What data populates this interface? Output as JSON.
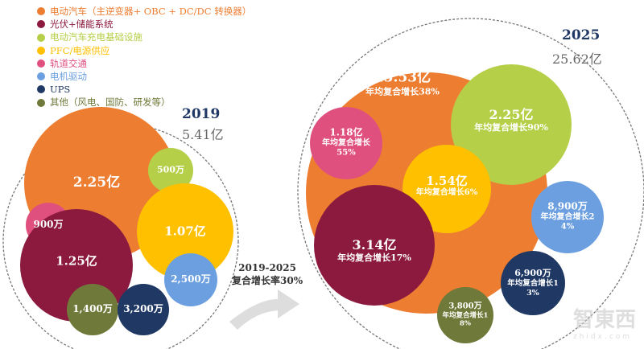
{
  "legend": [
    {
      "label": "电动汽车（主逆变器+ OBC + DC/DC 转换器）",
      "color": "#ed7d31"
    },
    {
      "label": "光伏+储能系统",
      "color": "#8b1a3e"
    },
    {
      "label": "电动汽车充电基础设施",
      "color": "#b5cf48"
    },
    {
      "label": "PFC/电源供应",
      "color": "#ffc000"
    },
    {
      "label": "轨道交通",
      "color": "#e0507f"
    },
    {
      "label": "电机驱动",
      "color": "#6c9fe0"
    },
    {
      "label": "UPS",
      "color": "#1f3864"
    },
    {
      "label": "其他（风电、国防、研发等）",
      "color": "#6f7a3a"
    }
  ],
  "chart_data": {
    "type": "bubble",
    "groups": [
      {
        "year": "2019",
        "total": "5.41亿",
        "bubbles": [
          {
            "category": "电动汽车（主逆变器+ OBC + DC/DC 转换器）",
            "value": "2.25亿"
          },
          {
            "category": "电动汽车充电基础设施",
            "value": "500万"
          },
          {
            "category": "PFC/电源供应",
            "value": "1.07亿"
          },
          {
            "category": "轨道交通",
            "value": "900万"
          },
          {
            "category": "光伏+储能系统",
            "value": "1.25亿"
          },
          {
            "category": "电机驱动",
            "value": "2,500万"
          },
          {
            "category": "其他（风电、国防、研发等）",
            "value": "1,400万"
          },
          {
            "category": "UPS",
            "value": "3,200万"
          }
        ]
      },
      {
        "year": "2025",
        "total": "25.62亿",
        "bubbles": [
          {
            "category": "电动汽车（主逆变器+ OBC + DC/DC 转换器）",
            "value": "15.53亿",
            "growth": "年均复合增长38%"
          },
          {
            "category": "电动汽车充电基础设施",
            "value": "2.25亿",
            "growth": "年均复合增长90%"
          },
          {
            "category": "轨道交通",
            "value": "1.18亿",
            "growth": "年均复合增长55%"
          },
          {
            "category": "PFC/电源供应",
            "value": "1.54亿",
            "growth": "年均复合增长6%"
          },
          {
            "category": "光伏+储能系统",
            "value": "3.14亿",
            "growth": "年均复合增长17%"
          },
          {
            "category": "电机驱动",
            "value": "8,900万",
            "growth": "年均复合增长24%"
          },
          {
            "category": "UPS",
            "value": "6,900万",
            "growth": "年均复合增长13%"
          },
          {
            "category": "其他（风电、国防、研发等）",
            "value": "3,800万",
            "growth": "年均复合增长18%"
          }
        ]
      }
    ],
    "arrow_label": [
      "2019-2025",
      "复合增长率30%"
    ]
  },
  "watermark": {
    "logo": "智東西",
    "url": "zhidx.com"
  }
}
